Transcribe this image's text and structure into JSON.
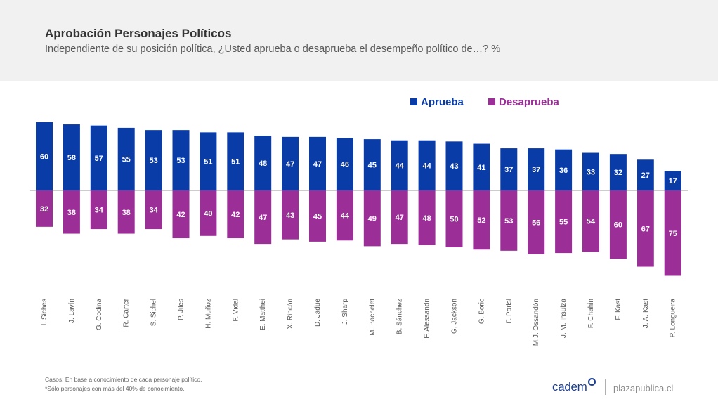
{
  "header": {
    "title": "Aprobación Personajes Políticos",
    "subtitle": "Independiente de su posición política, ¿Usted aprueba o desaprueba el desempeño político de…? %"
  },
  "footer": {
    "note1": "Casos: En base a conocimiento de cada personaje político.",
    "note2": "*Sólo personajes con más del 40% de conocimiento.",
    "brand": "cadem",
    "site": "plazapublica.cl"
  },
  "colors": {
    "aprueba": "#0a3ca8",
    "desaprueba": "#9b2f97"
  },
  "chart_data": {
    "type": "bar",
    "categories": [
      "I. Siches",
      "J. Lavín",
      "G. Codina",
      "R. Carter",
      "S. Sichel",
      "P. Jiles",
      "H. Muñoz",
      "F. Vidal",
      "E. Matthei",
      "X. Rincón",
      "D. Jadue",
      "J. Sharp",
      "M. Bachelet",
      "B. Sánchez",
      "F. Alessandri",
      "G. Jackson",
      "G. Boric",
      "F. Parisi",
      "M.J. Ossandón",
      "J. M. Insulza",
      "F. Chahin",
      "F. Kast",
      "J. A. Kast",
      "P. Longueira"
    ],
    "series": [
      {
        "name": "Aprueba",
        "values": [
          60,
          58,
          57,
          55,
          53,
          53,
          51,
          51,
          48,
          47,
          47,
          46,
          45,
          44,
          44,
          43,
          41,
          37,
          37,
          36,
          33,
          32,
          27,
          17
        ]
      },
      {
        "name": "Desaprueba",
        "values": [
          32,
          38,
          34,
          38,
          34,
          42,
          40,
          42,
          47,
          43,
          45,
          44,
          49,
          47,
          48,
          50,
          52,
          53,
          56,
          55,
          54,
          60,
          67,
          75
        ]
      }
    ],
    "legend_position": "top-right",
    "grid": false
  }
}
